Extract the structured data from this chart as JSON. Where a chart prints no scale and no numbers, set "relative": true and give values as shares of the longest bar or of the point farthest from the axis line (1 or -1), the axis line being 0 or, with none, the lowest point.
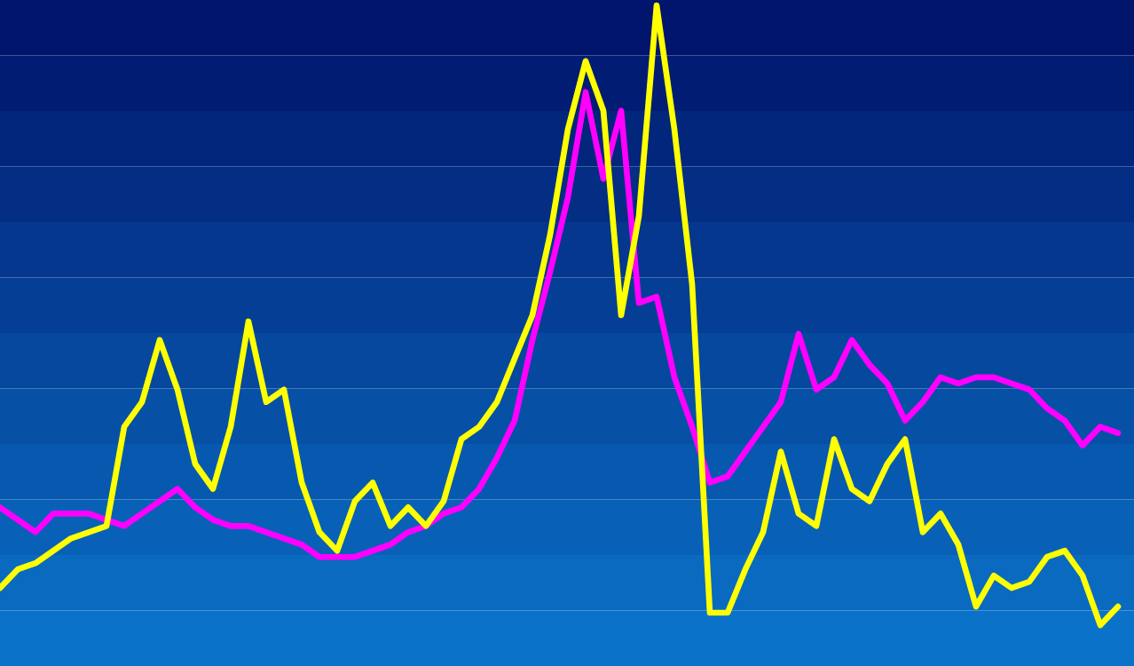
{
  "chart_data": {
    "type": "line",
    "relative": true,
    "marker": "none",
    "line_style": "solid",
    "categories": [
      null,
      null,
      null,
      null,
      null,
      null,
      null,
      null,
      null,
      null,
      null,
      null,
      null,
      null,
      null,
      null,
      null,
      null,
      null,
      null,
      null,
      null,
      null,
      null,
      null,
      null,
      null,
      null,
      null,
      null,
      null,
      null,
      null,
      null,
      null,
      null,
      null,
      null,
      null,
      null,
      null,
      null,
      null,
      null,
      null,
      null,
      null,
      null,
      null,
      null,
      null,
      null,
      null,
      null,
      null,
      null,
      null,
      null,
      null,
      null,
      null,
      null,
      null,
      null
    ],
    "series": [
      {
        "color": "#ff00ff",
        "values": [
          0.19,
          0.17,
          0.15,
          0.18,
          0.18,
          0.18,
          0.17,
          0.16,
          0.18,
          0.2,
          0.22,
          0.19,
          0.17,
          0.16,
          0.16,
          0.15,
          0.14,
          0.13,
          0.11,
          0.11,
          0.11,
          0.12,
          0.13,
          0.15,
          0.16,
          0.18,
          0.19,
          0.22,
          0.27,
          0.33,
          0.46,
          0.57,
          0.69,
          0.86,
          0.72,
          0.83,
          0.52,
          0.53,
          0.4,
          0.32,
          0.23,
          0.24,
          0.28,
          0.32,
          0.36,
          0.47,
          0.38,
          0.4,
          0.46,
          0.42,
          0.39,
          0.33,
          0.36,
          0.4,
          0.39,
          0.4,
          0.4,
          0.39,
          0.38,
          0.35,
          0.33,
          0.29,
          0.32,
          0.31
        ]
      },
      {
        "color": "#ffff00",
        "values": [
          0.06,
          0.09,
          0.1,
          0.12,
          0.14,
          0.15,
          0.16,
          0.32,
          0.36,
          0.46,
          0.38,
          0.26,
          0.22,
          0.32,
          0.49,
          0.36,
          0.38,
          0.23,
          0.15,
          0.12,
          0.2,
          0.23,
          0.16,
          0.19,
          0.16,
          0.2,
          0.3,
          0.32,
          0.36,
          0.43,
          0.5,
          0.63,
          0.8,
          0.91,
          0.83,
          0.5,
          0.66,
          1,
          0.8,
          0.55,
          0.02,
          0.02,
          0.09,
          0.15,
          0.28,
          0.18,
          0.16,
          0.3,
          0.22,
          0.2,
          0.26,
          0.3,
          0.15,
          0.18,
          0.13,
          0.03,
          0.08,
          0.06,
          0.07,
          0.11,
          0.12,
          0.08,
          0,
          0.03
        ]
      }
    ]
  }
}
